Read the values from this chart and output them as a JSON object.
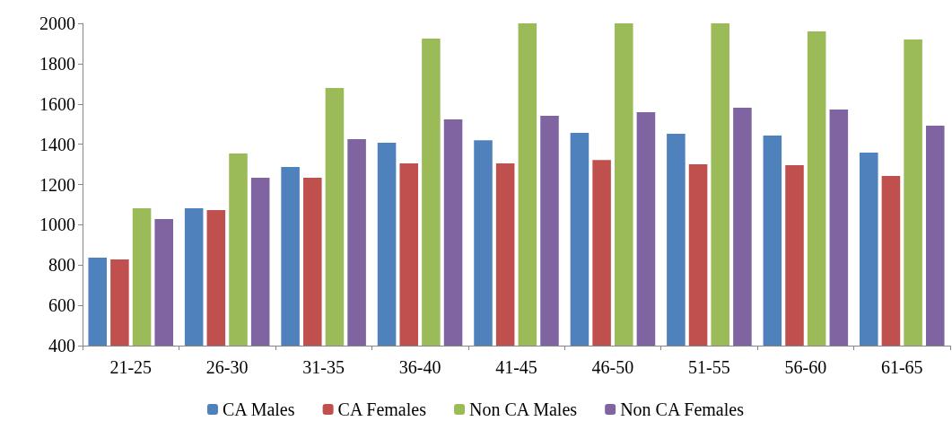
{
  "chart_data": {
    "type": "bar",
    "categories": [
      "21-25",
      "26-30",
      "31-35",
      "36-40",
      "41-45",
      "46-50",
      "51-55",
      "56-60",
      "61-65"
    ],
    "series": [
      {
        "name": "CA Males",
        "color": "#4f81bd",
        "values": [
          837,
          1082,
          1287,
          1407,
          1420,
          1456,
          1452,
          1443,
          1358
        ]
      },
      {
        "name": "CA Females",
        "color": "#c0504d",
        "values": [
          828,
          1073,
          1233,
          1305,
          1305,
          1322,
          1300,
          1296,
          1242
        ]
      },
      {
        "name": "Non CA Males",
        "color": "#9bbb59",
        "values": [
          1082,
          1354,
          1679,
          1924,
          2000,
          2000,
          2000,
          1960,
          1920
        ]
      },
      {
        "name": "Non CA Females",
        "color": "#8064a2",
        "values": [
          1028,
          1233,
          1425,
          1523,
          1541,
          1559,
          1581,
          1572,
          1492
        ]
      }
    ],
    "ylim": [
      400,
      2000
    ],
    "yticks": [
      400,
      600,
      800,
      1000,
      1200,
      1400,
      1600,
      1800,
      2000
    ],
    "grid": false,
    "legend": "bottom"
  }
}
